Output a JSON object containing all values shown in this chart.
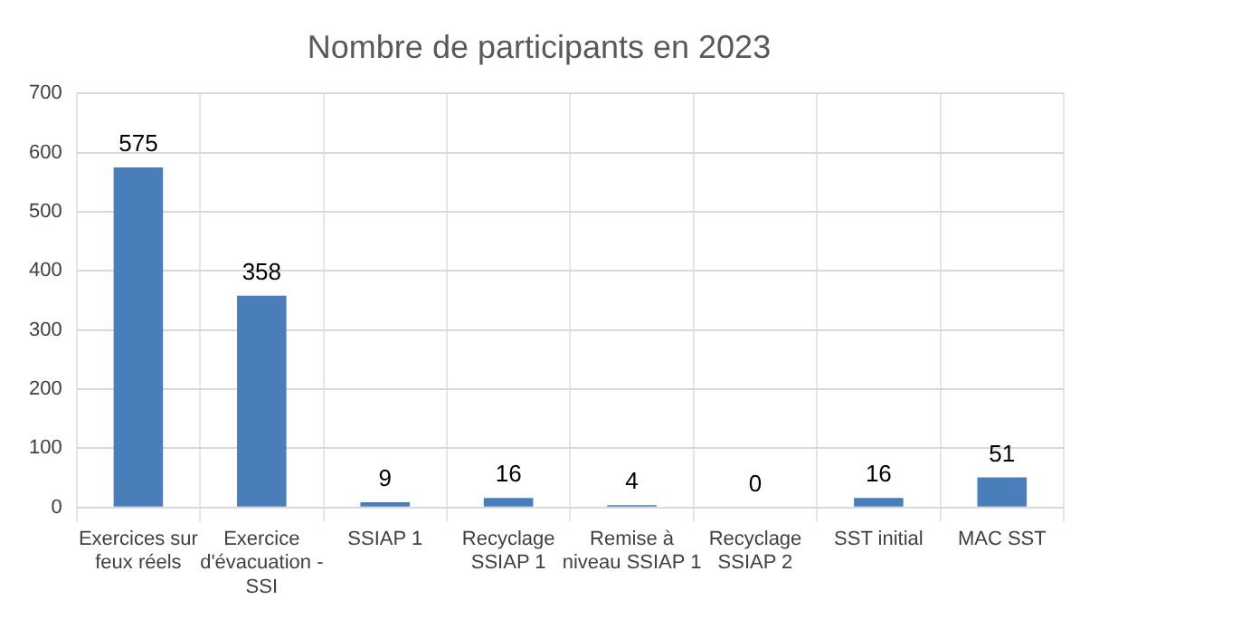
{
  "chart_data": {
    "type": "bar",
    "title": "Nombre de participants en 2023",
    "categories": [
      "Exercices sur feux réels",
      "Exercice d'évacuation - SSI",
      "SSIAP 1",
      "Recyclage SSIAP 1",
      "Remise à niveau SSIAP 1",
      "Recyclage SSIAP 2",
      "SST initial",
      "MAC SST"
    ],
    "values": [
      575,
      358,
      9,
      16,
      4,
      0,
      16,
      51
    ],
    "color": "#4a7ebb",
    "ylim": [
      0,
      700
    ],
    "yticks": [
      0,
      100,
      200,
      300,
      400,
      500,
      600,
      700
    ],
    "grid": true,
    "data_labels": true
  }
}
